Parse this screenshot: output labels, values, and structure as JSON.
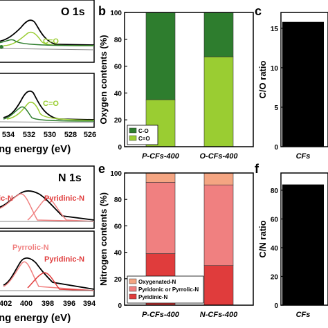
{
  "panels": {
    "b": "b",
    "c": "c",
    "e": "e",
    "f": "f"
  },
  "xps_top": {
    "title": "O 1s",
    "peak_label_1": "C=O",
    "peak_label_2": "C=O",
    "ticks": [
      "534",
      "532",
      "530",
      "528",
      "526"
    ],
    "xlabel": "ng energy (eV)"
  },
  "xps_bottom": {
    "title": "N 1s",
    "label_pyridinic_1": "Pyridinic-N",
    "label_partial": "ic-N",
    "label_pyrrolic": "Pyrrolic-N",
    "label_pyridinic_2": "Pyridinic-N",
    "ticks": [
      "402",
      "400",
      "398",
      "396",
      "394"
    ],
    "xlabel": "ng energy (eV)"
  },
  "colors": {
    "c_o": "#2e7d2e",
    "c_eq_o": "#9acd32",
    "oxygenated_n": "#f4a582",
    "pyridonic_pyrrolic_n": "#f08080",
    "pyridinic_n": "#e03c3c",
    "black_bar": "#000000"
  },
  "chart_data": [
    {
      "panel": "b",
      "type": "bar",
      "stacked": true,
      "categories": [
        "P-CFs-400",
        "O-CFs-400"
      ],
      "series": [
        {
          "name": "C=O",
          "values": [
            35,
            67
          ]
        },
        {
          "name": "C-O",
          "values": [
            65,
            33
          ]
        }
      ],
      "ylabel": "Oxygen contents (%)",
      "ylim": [
        0,
        100
      ],
      "yticks": [
        "0",
        "20",
        "40",
        "60",
        "80",
        "100"
      ],
      "legend": [
        "C-O",
        "C=O"
      ],
      "legend_position": "bottom-left"
    },
    {
      "panel": "c",
      "type": "bar",
      "categories": [
        "CFs"
      ],
      "values": [
        15.8
      ],
      "ylabel": "C/O ratio",
      "ylim": [
        0,
        17
      ],
      "yticks": [
        "0",
        "5",
        "10",
        "15"
      ]
    },
    {
      "panel": "e",
      "type": "bar",
      "stacked": true,
      "categories": [
        "P-CFs-400",
        "N-CFs-400"
      ],
      "series": [
        {
          "name": "Pyridinic-N",
          "values": [
            39,
            30
          ]
        },
        {
          "name": "Pyridonic or Pyrrolic-N",
          "values": [
            54,
            61
          ]
        },
        {
          "name": "Oxygenated-N",
          "values": [
            7,
            9
          ]
        }
      ],
      "ylabel": "Nitrogen contents (%)",
      "ylim": [
        0,
        100
      ],
      "yticks": [
        "0",
        "20",
        "40",
        "60",
        "80",
        "100"
      ],
      "legend": [
        "Oxygenated-N",
        "Pyridonic or Pyrrolic-N",
        "Pyridinic-N"
      ],
      "legend_position": "bottom-left"
    },
    {
      "panel": "f",
      "type": "bar",
      "categories": [
        "CFs"
      ],
      "values": [
        84
      ],
      "ylabel": "C/N ratio",
      "ylim": [
        0,
        92
      ],
      "yticks": [
        "0",
        "20",
        "40",
        "60",
        "80"
      ]
    }
  ]
}
